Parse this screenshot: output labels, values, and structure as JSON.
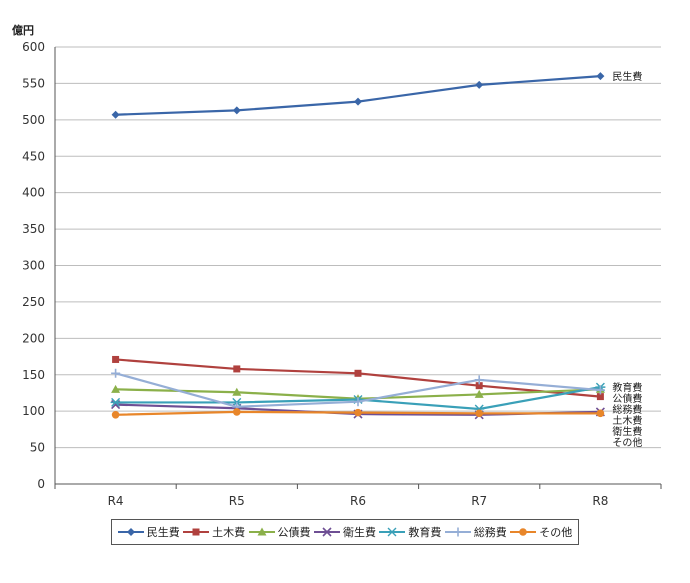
{
  "chart_data": {
    "type": "line",
    "ylabel": "億円",
    "categories": [
      "R4",
      "R5",
      "R6",
      "R7",
      "R8"
    ],
    "ylim": [
      0,
      600
    ],
    "ytick_step": 50,
    "grid": "horizontal",
    "legend_position": "bottom",
    "series": [
      {
        "name": "民生費",
        "color": "#3A66A8",
        "marker": "diamond",
        "values": [
          507,
          513,
          525,
          548,
          560
        ],
        "end_label": "民生費"
      },
      {
        "name": "土木費",
        "color": "#B0413E",
        "marker": "square",
        "values": [
          171,
          158,
          152,
          135,
          120
        ],
        "end_label": "土木費"
      },
      {
        "name": "公債費",
        "color": "#8BB04A",
        "marker": "triangle",
        "values": [
          130,
          126,
          117,
          123,
          130
        ],
        "end_label": "公債費"
      },
      {
        "name": "衛生費",
        "color": "#6E4F94",
        "marker": "x",
        "values": [
          109,
          104,
          96,
          95,
          99
        ],
        "end_label": "衛生費"
      },
      {
        "name": "教育費",
        "color": "#3AA0B8",
        "marker": "star",
        "values": [
          112,
          112,
          116,
          103,
          133
        ],
        "end_label": "教育費"
      },
      {
        "name": "総務費",
        "color": "#95AED6",
        "marker": "plus",
        "values": [
          152,
          106,
          113,
          143,
          129
        ],
        "end_label": "総務費"
      },
      {
        "name": "その他",
        "color": "#E8862A",
        "marker": "circle",
        "values": [
          95,
          99,
          98,
          97,
          97
        ],
        "end_label": "その他"
      }
    ]
  }
}
